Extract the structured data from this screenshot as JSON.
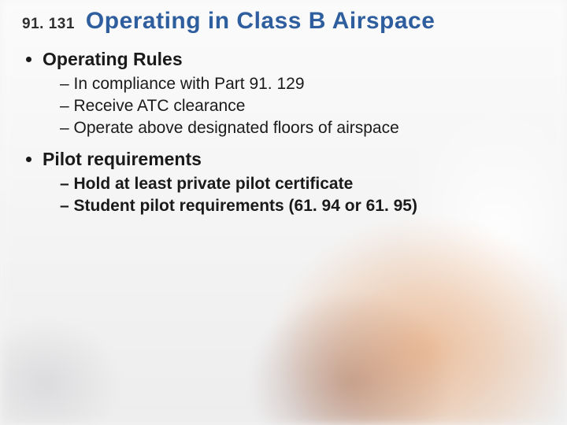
{
  "colors": {
    "title": "#2e5e9e",
    "text": "#1a1a1a",
    "section_num": "#2f2f2f",
    "background_base": "#f4f4f4"
  },
  "typography": {
    "section_num_fontsize": 19,
    "title_fontsize": 30,
    "bullet_fontsize": 23,
    "subbullet_fontsize": 21,
    "bullet_fontweight": 700,
    "subbullet_fontweight_section1": 400,
    "subbullet_fontweight_section2": 700
  },
  "header": {
    "section_number": "91. 131",
    "title": "Operating in Class B Airspace"
  },
  "content": {
    "sections": [
      {
        "heading": "Operating Rules",
        "sub_bold": false,
        "items": [
          "In compliance with Part 91. 129",
          "Receive ATC clearance",
          "Operate above designated floors of airspace"
        ]
      },
      {
        "heading": "Pilot requirements",
        "sub_bold": true,
        "items": [
          "Hold at least private pilot certificate",
          "Student pilot requirements (61. 94 or 61. 95)"
        ]
      }
    ]
  }
}
